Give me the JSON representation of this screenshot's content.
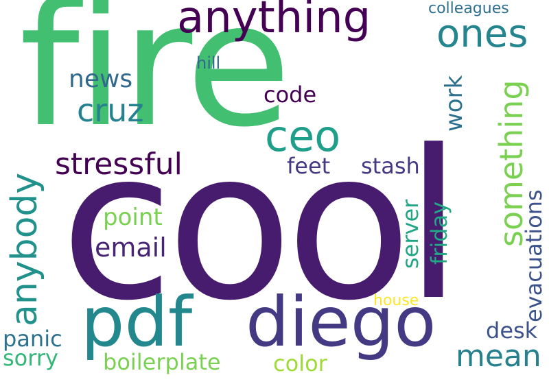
{
  "words": [
    {
      "text": "fire",
      "color": "#43bf71"
    },
    {
      "text": "cool",
      "color": "#471c6e"
    },
    {
      "text": "anything",
      "color": "#440154"
    },
    {
      "text": "ones",
      "color": "#25858e"
    },
    {
      "text": "colleagues",
      "color": "#2e6f8e"
    },
    {
      "text": "hill",
      "color": "#31688e"
    },
    {
      "text": "news",
      "color": "#31688e"
    },
    {
      "text": "cruz",
      "color": "#26818e"
    },
    {
      "text": "code",
      "color": "#440154"
    },
    {
      "text": "ceo",
      "color": "#1f9e89"
    },
    {
      "text": "work",
      "color": "#2d708e"
    },
    {
      "text": "something",
      "color": "#7ad151"
    },
    {
      "text": "stressful",
      "color": "#440154"
    },
    {
      "text": "feet",
      "color": "#443983"
    },
    {
      "text": "stash",
      "color": "#443983"
    },
    {
      "text": "anybody",
      "color": "#21918c"
    },
    {
      "text": "point",
      "color": "#7ad151"
    },
    {
      "text": "email",
      "color": "#482475"
    },
    {
      "text": "server",
      "color": "#21a685"
    },
    {
      "text": "friday",
      "color": "#22a884"
    },
    {
      "text": "evacuations",
      "color": "#3b528b"
    },
    {
      "text": "pdf",
      "color": "#23888e"
    },
    {
      "text": "diego",
      "color": "#443983"
    },
    {
      "text": "house",
      "color": "#fde725"
    },
    {
      "text": "desk",
      "color": "#3b528b"
    },
    {
      "text": "panic",
      "color": "#2c728e"
    },
    {
      "text": "mean",
      "color": "#27808e"
    },
    {
      "text": "sorry",
      "color": "#35b779"
    },
    {
      "text": "boilerplate",
      "color": "#7ad151"
    },
    {
      "text": "color",
      "color": "#a0da39"
    }
  ]
}
